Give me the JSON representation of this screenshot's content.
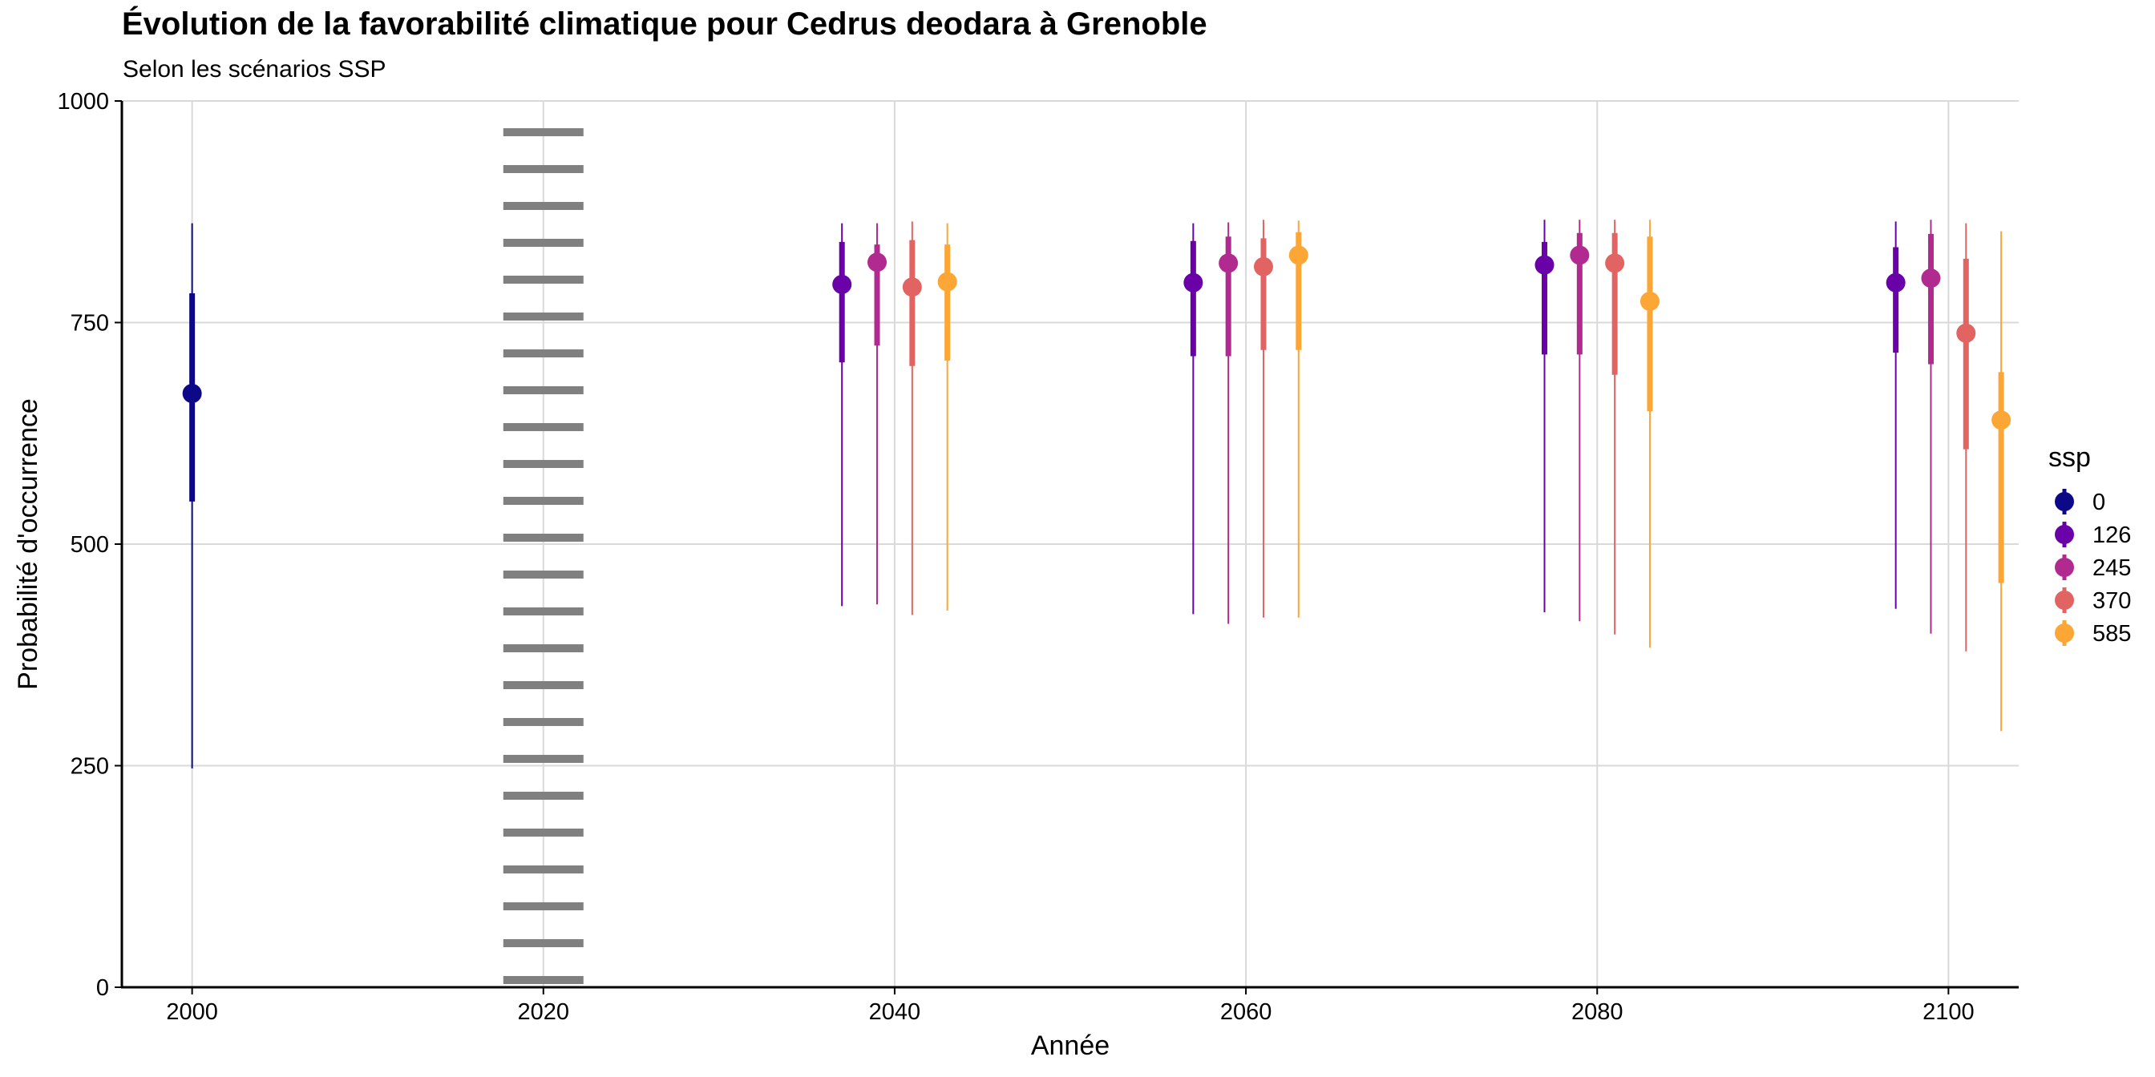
{
  "chart_data": {
    "type": "pointrange",
    "title": "Évolution de la favorabilité climatique pour Cedrus deodara à Grenoble",
    "subtitle": "Selon les scénarios SSP",
    "xlabel": "Année",
    "ylabel": "Probabilité d'occurrence",
    "xlim": [
      1996,
      2104
    ],
    "ylim": [
      0,
      1000
    ],
    "x_ticks": [
      2000,
      2020,
      2040,
      2060,
      2080,
      2100
    ],
    "y_ticks": [
      0,
      250,
      500,
      750,
      1000
    ],
    "grid": true,
    "reference_line": {
      "x": 2020,
      "style": "dotted",
      "color": "#808080"
    },
    "legend": {
      "title": "ssp",
      "position": "right"
    },
    "series": [
      {
        "name": "0",
        "color": "#0D0887",
        "points": [
          {
            "x": 2000,
            "y": 670,
            "inner": [
              548,
              783
            ],
            "outer": [
              247,
              862
            ]
          }
        ]
      },
      {
        "name": "126",
        "color": "#6A00A8",
        "points": [
          {
            "x": 2037,
            "y": 793,
            "inner": [
              705,
              841
            ],
            "outer": [
              430,
              862
            ]
          },
          {
            "x": 2057,
            "y": 795,
            "inner": [
              712,
              842
            ],
            "outer": [
              421,
              862
            ]
          },
          {
            "x": 2077,
            "y": 815,
            "inner": [
              714,
              841
            ],
            "outer": [
              423,
              866
            ]
          },
          {
            "x": 2097,
            "y": 795,
            "inner": [
              716,
              835
            ],
            "outer": [
              427,
              864
            ]
          }
        ]
      },
      {
        "name": "245",
        "color": "#B12A90",
        "points": [
          {
            "x": 2039,
            "y": 818,
            "inner": [
              724,
              838
            ],
            "outer": [
              432,
              862
            ]
          },
          {
            "x": 2059,
            "y": 817,
            "inner": [
              712,
              847
            ],
            "outer": [
              410,
              863
            ]
          },
          {
            "x": 2079,
            "y": 826,
            "inner": [
              714,
              851
            ],
            "outer": [
              413,
              866
            ]
          },
          {
            "x": 2099,
            "y": 800,
            "inner": [
              703,
              850
            ],
            "outer": [
              399,
              866
            ]
          }
        ]
      },
      {
        "name": "370",
        "color": "#E16462",
        "points": [
          {
            "x": 2041,
            "y": 790,
            "inner": [
              701,
              843
            ],
            "outer": [
              420,
              864
            ]
          },
          {
            "x": 2061,
            "y": 813,
            "inner": [
              719,
              845
            ],
            "outer": [
              417,
              866
            ]
          },
          {
            "x": 2081,
            "y": 817,
            "inner": [
              691,
              851
            ],
            "outer": [
              398,
              866
            ]
          },
          {
            "x": 2101,
            "y": 738,
            "inner": [
              607,
              822
            ],
            "outer": [
              379,
              862
            ]
          }
        ]
      },
      {
        "name": "585",
        "color": "#FCA636",
        "points": [
          {
            "x": 2043,
            "y": 796,
            "inner": [
              707,
              838
            ],
            "outer": [
              425,
              862
            ]
          },
          {
            "x": 2063,
            "y": 826,
            "inner": [
              719,
              852
            ],
            "outer": [
              417,
              865
            ]
          },
          {
            "x": 2083,
            "y": 774,
            "inner": [
              650,
              847
            ],
            "outer": [
              383,
              866
            ]
          },
          {
            "x": 2103,
            "y": 640,
            "inner": [
              456,
              694
            ],
            "outer": [
              289,
              853
            ]
          }
        ]
      }
    ]
  }
}
